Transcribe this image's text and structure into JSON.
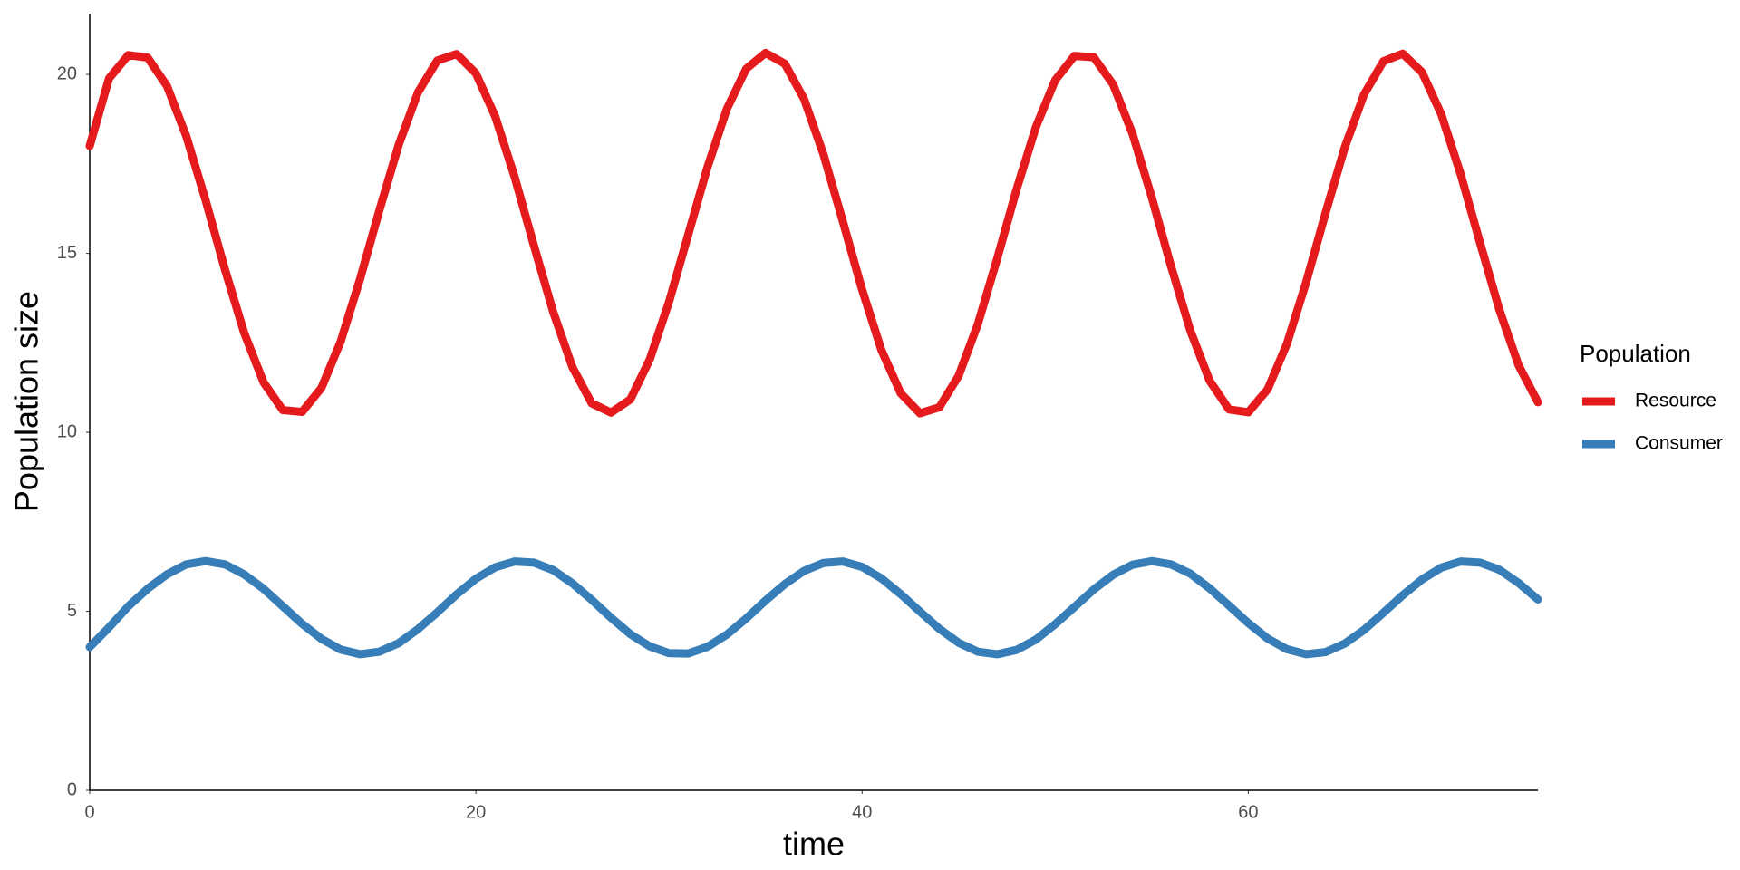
{
  "chart_data": {
    "type": "line",
    "x_label": "time",
    "y_label": "Population size",
    "legend_title": "Population",
    "x": [
      0,
      1,
      2,
      3,
      4,
      5,
      6,
      7,
      8,
      9,
      10,
      11,
      12,
      13,
      14,
      15,
      16,
      17,
      18,
      19,
      20,
      21,
      22,
      23,
      24,
      25,
      26,
      27,
      28,
      29,
      30,
      31,
      32,
      33,
      34,
      35,
      36,
      37,
      38,
      39,
      40,
      41,
      42,
      43,
      44,
      45,
      46,
      47,
      48,
      49,
      50,
      51,
      52,
      53,
      54,
      55,
      56,
      57,
      58,
      59,
      60,
      61,
      62,
      63,
      64,
      65,
      66,
      67,
      68,
      69,
      70,
      71,
      72,
      73,
      74,
      75
    ],
    "series": [
      {
        "name": "Resource",
        "color": "#e41a1c",
        "values": [
          18.0,
          19.89,
          20.54,
          20.47,
          19.68,
          18.28,
          16.49,
          14.56,
          12.78,
          11.4,
          10.62,
          10.57,
          11.24,
          12.54,
          14.28,
          16.2,
          18.03,
          19.5,
          20.39,
          20.57,
          20.03,
          18.83,
          17.15,
          15.23,
          13.37,
          11.82,
          10.81,
          10.55,
          10.92,
          12.03,
          13.64,
          15.53,
          17.42,
          19.04,
          20.16,
          20.6,
          20.3,
          19.31,
          17.77,
          15.9,
          13.99,
          12.3,
          11.09,
          10.53,
          10.7,
          11.58,
          13.03,
          14.86,
          16.79,
          18.53,
          19.84,
          20.52,
          20.48,
          19.72,
          18.35,
          16.57,
          14.64,
          12.84,
          11.44,
          10.64,
          10.56,
          11.2,
          12.47,
          14.2,
          16.13,
          17.97,
          19.45,
          20.37,
          20.58,
          20.06,
          18.88,
          17.21,
          15.3,
          13.43,
          11.87,
          10.84
        ]
      },
      {
        "name": "Consumer",
        "color": "#377eb8",
        "values": [
          4.0,
          4.55,
          5.14,
          5.63,
          6.03,
          6.31,
          6.4,
          6.31,
          6.03,
          5.63,
          5.14,
          4.65,
          4.23,
          3.93,
          3.8,
          3.87,
          4.11,
          4.5,
          4.97,
          5.47,
          5.91,
          6.23,
          6.39,
          6.36,
          6.15,
          5.78,
          5.32,
          4.82,
          4.36,
          4.02,
          3.83,
          3.82,
          4.01,
          4.35,
          4.8,
          5.3,
          5.76,
          6.13,
          6.35,
          6.39,
          6.24,
          5.92,
          5.48,
          4.99,
          4.51,
          4.12,
          3.87,
          3.8,
          3.92,
          4.21,
          4.64,
          5.12,
          5.61,
          6.02,
          6.3,
          6.4,
          6.31,
          6.05,
          5.64,
          5.16,
          4.67,
          4.24,
          3.94,
          3.8,
          3.86,
          4.1,
          4.48,
          4.96,
          5.45,
          5.89,
          6.22,
          6.39,
          6.36,
          6.16,
          5.79,
          5.33
        ]
      }
    ],
    "xlim": [
      0,
      75
    ],
    "xticks": [
      0,
      20,
      40,
      60
    ],
    "ylim": [
      0,
      21.7
    ],
    "yticks": [
      0,
      5,
      10,
      15,
      20
    ],
    "grid": false,
    "legend_position": "right"
  }
}
